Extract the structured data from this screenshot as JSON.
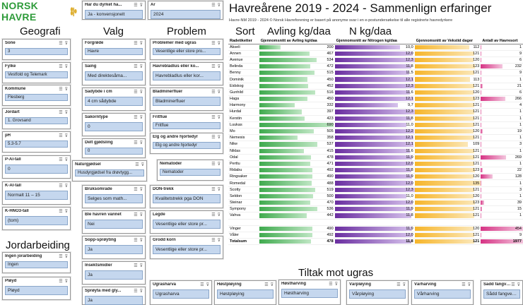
{
  "brand": {
    "name": "NORSK HAVRE"
  },
  "titles": {
    "main": "Havreårene 2019 - 2024  - Sammenlign erfaringer",
    "subtitle": "Havre-NM 2019 - 2024  © Norsk Havreforening er basert på anonyme svar i en e-postundersøkelse til alle registrerte havredyrkere",
    "geografi": "Geografi",
    "valg": "Valg",
    "problem": "Problem",
    "sort": "Sort",
    "avling": "Avling kg/daa",
    "n": "N kg/daa",
    "jordarbeiding": "Jordarbeiding",
    "tiltak": "Tiltak mot ugras"
  },
  "slicers": {
    "dyrket": {
      "label": "Har du dyrket ha...",
      "value": "Ja - konvensjonelt"
    },
    "aar": {
      "label": "År",
      "value": "2024"
    },
    "sone": {
      "label": "Sone",
      "value": "3"
    },
    "fylke": {
      "label": "Fylke",
      "value": "Vestfold og Telemark"
    },
    "kommune": {
      "label": "Kommune",
      "value": "Flesberg"
    },
    "jordart": {
      "label": "Jordart",
      "value": "1. Grovsand"
    },
    "ph": {
      "label": "pH",
      "value": "5.3-5.7"
    },
    "pal": {
      "label": "P-Al-tall",
      "value": "0"
    },
    "kal": {
      "label": "K-Al-tall",
      "value": "Normalt 11 – 15"
    },
    "khno3": {
      "label": "K-HNO3-tall",
      "value": "(tom)"
    },
    "ingenjord": {
      "label": "Ingen jorarbeiding",
      "value": "Ingen"
    },
    "ploy": {
      "label": "Pløyd",
      "value": "Pløyd"
    },
    "forgrode": {
      "label": "Forgrøde",
      "value": "Havre"
    },
    "saing": {
      "label": "Såing",
      "value": "Med direktesåma..."
    },
    "sadybde": {
      "label": "Sådybde i cm",
      "value": "4 cm sådybde"
    },
    "sakorn": {
      "label": "Såkorntype",
      "value": "0"
    },
    "delt": {
      "label": "Delt gjødsling",
      "value": "0"
    },
    "naturgjodsel": {
      "label": "Naturgjødsel",
      "value": "Husdyrgjødsel fra drøvtygg..."
    },
    "bruk": {
      "label": "Bruksområde",
      "value": "Selges som math..."
    },
    "vannet": {
      "label": "Ble havren vannet",
      "value": "Nei"
    },
    "sopp": {
      "label": "Sopp-sprøyting",
      "value": "Ja"
    },
    "insekt": {
      "label": "Insektsmidler",
      "value": "Ja"
    },
    "sproyta": {
      "label": "Sprøyta med gly...",
      "value": "Ja"
    },
    "ugras": {
      "label": "Problemer med ugras",
      "value": "Vesentlige eller store pro..."
    },
    "bladlus": {
      "label": "Havrebladlus eller ko...",
      "value": "Havrebladlus eller kor..."
    },
    "bladminer": {
      "label": "Bladminerfluer",
      "value": "Bladminerfluer"
    },
    "fritflue": {
      "label": "Fritflue",
      "value": "Fritflue"
    },
    "elg": {
      "label": "Elg og andre hjortedyr",
      "value": "Elg og andre hjortedyr"
    },
    "nematoder": {
      "label": "Nematoder",
      "value": "Nematoder"
    },
    "don": {
      "label": "DON-trekk",
      "value": "Kvalitetstrekk pga DON"
    },
    "legde": {
      "label": "Legde",
      "value": "Vesentlige eller store pr..."
    },
    "grodd": {
      "label": "Grodd korn",
      "value": "Vesentlige eller store pr..."
    },
    "ugrasharva": {
      "label": "Ugrasharva",
      "value": "Ugrasharva"
    },
    "hostploying": {
      "label": "Høstpløying",
      "value": "Høstpløying"
    },
    "hostharving": {
      "label": "Høstharving",
      "value": "Høstharving"
    },
    "varploying": {
      "label": "Vårpløying",
      "value": "Vårpløying"
    },
    "varharving": {
      "label": "Vårharving",
      "value": "Vårharving"
    },
    "saddfang": {
      "label": "Sådd fangveks...",
      "value": "Sådd fangvekster..."
    }
  },
  "table": {
    "headers": [
      "Radetiketter",
      "Gjennomsnitt av Avling kg/daa",
      "Gjennomsnitt av Nitrogen kg/daa",
      "Gjennomsnitt av Vekstid dager",
      "Antall av Havresort"
    ],
    "rows": [
      [
        "Akseli",
        "200",
        "10,0",
        "112",
        "1"
      ],
      [
        "Annen",
        "467",
        "12,0",
        "121",
        "9"
      ],
      [
        "Avenue",
        "534",
        "12,3",
        "120",
        "6"
      ],
      [
        "Belinda",
        "472",
        "11,8",
        "123",
        "232"
      ],
      [
        "Benny",
        "515",
        "11,5",
        "121",
        "9"
      ],
      [
        "Dominik",
        "450",
        "12,1",
        "113",
        "1"
      ],
      [
        "Eidskog",
        "452",
        "12,3",
        "121",
        "21"
      ],
      [
        "Gunhild",
        "516",
        "11,6",
        "120",
        "6"
      ],
      [
        "Haga",
        "450",
        "12,1",
        "123",
        "266"
      ],
      [
        "Harmony",
        "332",
        "9,7",
        "121",
        "4"
      ],
      [
        "Hurdal",
        "397",
        "12,3",
        "121",
        "1"
      ],
      [
        "Kerstin",
        "423",
        "11,8",
        "121",
        "1"
      ],
      [
        "Luukas",
        "690",
        "11,0",
        "121",
        "1"
      ],
      [
        "Mo",
        "505",
        "12,2",
        "120",
        "19"
      ],
      [
        "Nemesis",
        "358",
        "12,1",
        "121",
        "1"
      ],
      [
        "Nike",
        "537",
        "12,1",
        "109",
        "3"
      ],
      [
        "Niklas",
        "415",
        "11,6",
        "121",
        "1"
      ],
      [
        "Odal",
        "478",
        "11,9",
        "121",
        "269"
      ],
      [
        "Perttu",
        "471",
        "12,0",
        "121",
        "1"
      ],
      [
        "Ridabu",
        "492",
        "11,8",
        "123",
        "22"
      ],
      [
        "Ringsaker",
        "490",
        "11,9",
        "120",
        "128"
      ],
      [
        "Romedal",
        "488",
        "12,0",
        "135",
        "1"
      ],
      [
        "Scotty",
        "519",
        "12,3",
        "121",
        "3"
      ],
      [
        "Seldon",
        "500",
        "11,0",
        "120",
        "1"
      ],
      [
        "Steinar",
        "470",
        "12,0",
        "123",
        "39"
      ],
      [
        "Sympony",
        "536",
        "11,9",
        "121",
        "15"
      ],
      [
        "Vahva",
        "442",
        "11,8",
        "121",
        "1"
      ],
      [
        "",
        "",
        "",
        "",
        ""
      ],
      [
        "Vinger",
        "490",
        "11,9",
        "120",
        "454"
      ],
      [
        "Våler",
        "492",
        "12,0",
        "121",
        "9"
      ]
    ],
    "total": [
      "Totalsum",
      "478",
      "11,8",
      "121",
      "1977"
    ]
  },
  "colors": {
    "green": "#3faa4e",
    "purple": "#6a2ea0",
    "orange": "#f6b52a",
    "magenta": "#d63384"
  }
}
